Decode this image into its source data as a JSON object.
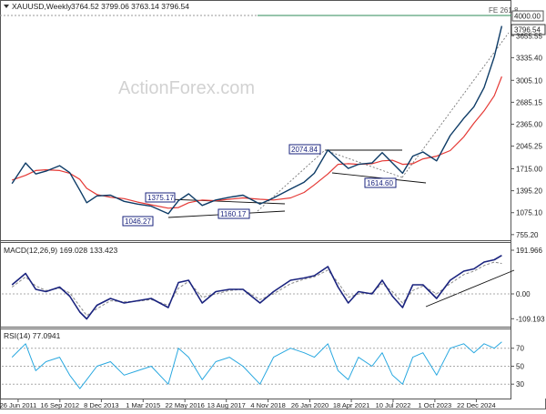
{
  "chart_data": [
    {
      "type": "line",
      "panel": "price",
      "symbol": "XAUUSD,Weekly",
      "ohlc_header": "3764.52 3799.06 3763.14 3796.54",
      "watermark": "ActionForex.com",
      "fib_label": "FE 261.8",
      "y_ticks": [
        "3655.55",
        "3335.40",
        "3005.10",
        "2685.15",
        "2365.00",
        "2045.25",
        "1715.00",
        "1395.20",
        "1075.10",
        "755.20"
      ],
      "y_tick_values": [
        3655.55,
        3335.4,
        3005.1,
        2685.15,
        2365.0,
        2045.25,
        1715.0,
        1395.2,
        1075.1,
        755.2
      ],
      "ylim": [
        700,
        4150
      ],
      "last_price": "3796.54",
      "level_4000": "4000.00",
      "x_ticks": [
        "26 Jun 2011",
        "16 Sep 2012",
        "8 Dec 2013",
        "1 Mar 2015",
        "22 May 2016",
        "13 Aug 2017",
        "4 Nov 2018",
        "26 Jan 2020",
        "18 Apr 2021",
        "10 Jul 2022",
        "1 Oct 2023",
        "22 Dec 2024"
      ],
      "annotations": [
        "1375.17",
        "1046.27",
        "1160.17",
        "2074.84",
        "1614.60"
      ],
      "x": [
        2011.3,
        2011.7,
        2012.0,
        2012.3,
        2012.7,
        2013.0,
        2013.3,
        2013.5,
        2013.8,
        2014.2,
        2014.6,
        2015.0,
        2015.4,
        2015.9,
        2016.2,
        2016.5,
        2016.9,
        2017.3,
        2017.7,
        2018.1,
        2018.6,
        2019.0,
        2019.5,
        2019.9,
        2020.2,
        2020.6,
        2020.9,
        2021.2,
        2021.5,
        2021.9,
        2022.2,
        2022.5,
        2022.8,
        2023.1,
        2023.4,
        2023.8,
        2024.2,
        2024.6,
        2024.9,
        2025.2,
        2025.5,
        2025.72
      ],
      "series": [
        {
          "values": [
            1500,
            1800,
            1640,
            1680,
            1760,
            1660,
            1400,
            1220,
            1320,
            1330,
            1240,
            1200,
            1170,
            1060,
            1250,
            1350,
            1180,
            1260,
            1300,
            1330,
            1200,
            1290,
            1420,
            1520,
            1650,
            1990,
            1850,
            1720,
            1780,
            1800,
            1950,
            1800,
            1650,
            1900,
            1960,
            1830,
            2200,
            2450,
            2620,
            2900,
            3350,
            3796.54
          ]
        },
        {
          "values": [
            1550,
            1620,
            1690,
            1700,
            1690,
            1650,
            1560,
            1430,
            1340,
            1300,
            1280,
            1230,
            1190,
            1140,
            1150,
            1220,
            1260,
            1250,
            1270,
            1290,
            1270,
            1260,
            1290,
            1370,
            1480,
            1640,
            1780,
            1790,
            1780,
            1790,
            1830,
            1840,
            1780,
            1790,
            1860,
            1900,
            1980,
            2180,
            2380,
            2560,
            2780,
            3060
          ]
        }
      ]
    },
    {
      "type": "line",
      "panel": "macd",
      "label": "MACD(12,26,9) 169.028 133.423",
      "y_ticks": [
        "191.966",
        "0.00",
        "-109.193"
      ],
      "y_tick_values": [
        191.966,
        0,
        -109.193
      ],
      "ylim": [
        -140,
        220
      ],
      "x": [
        2011.3,
        2011.7,
        2012.0,
        2012.3,
        2012.7,
        2013.0,
        2013.3,
        2013.5,
        2013.8,
        2014.2,
        2014.6,
        2015.0,
        2015.4,
        2015.9,
        2016.2,
        2016.5,
        2016.9,
        2017.3,
        2017.7,
        2018.1,
        2018.6,
        2019.0,
        2019.5,
        2019.9,
        2020.2,
        2020.6,
        2020.9,
        2021.2,
        2021.5,
        2021.9,
        2022.2,
        2022.5,
        2022.8,
        2023.1,
        2023.4,
        2023.8,
        2024.2,
        2024.6,
        2024.9,
        2025.2,
        2025.5,
        2025.72
      ],
      "series": [
        {
          "values": [
            40,
            90,
            20,
            10,
            30,
            -10,
            -80,
            -110,
            -50,
            -20,
            -40,
            -30,
            -20,
            -60,
            50,
            60,
            -40,
            10,
            20,
            20,
            -40,
            10,
            60,
            70,
            80,
            120,
            30,
            -40,
            10,
            0,
            60,
            -10,
            -60,
            40,
            40,
            -20,
            60,
            100,
            110,
            140,
            150,
            169.028
          ]
        },
        {
          "values": [
            30,
            75,
            35,
            15,
            25,
            5,
            -55,
            -95,
            -65,
            -30,
            -35,
            -32,
            -25,
            -50,
            25,
            55,
            -15,
            0,
            15,
            20,
            -25,
            0,
            45,
            65,
            75,
            105,
            50,
            -15,
            0,
            5,
            45,
            10,
            -40,
            15,
            35,
            0,
            45,
            85,
            100,
            125,
            140,
            133.423
          ]
        }
      ]
    },
    {
      "type": "line",
      "panel": "rsi",
      "label": "RSI(14) 77.0941",
      "y_ticks": [
        "70",
        "50",
        "30"
      ],
      "y_tick_values": [
        70,
        50,
        30
      ],
      "ylim": [
        15,
        90
      ],
      "x": [
        2011.3,
        2011.7,
        2012.0,
        2012.3,
        2012.7,
        2013.0,
        2013.3,
        2013.5,
        2013.8,
        2014.2,
        2014.6,
        2015.0,
        2015.4,
        2015.9,
        2016.2,
        2016.5,
        2016.9,
        2017.3,
        2017.7,
        2018.1,
        2018.6,
        2019.0,
        2019.5,
        2019.9,
        2020.2,
        2020.6,
        2020.9,
        2021.2,
        2021.5,
        2021.9,
        2022.2,
        2022.5,
        2022.8,
        2023.1,
        2023.4,
        2023.8,
        2024.2,
        2024.6,
        2024.9,
        2025.2,
        2025.5,
        2025.72
      ],
      "series": [
        {
          "values": [
            60,
            75,
            45,
            55,
            60,
            40,
            25,
            35,
            50,
            55,
            40,
            45,
            50,
            30,
            70,
            60,
            35,
            55,
            60,
            50,
            30,
            60,
            70,
            65,
            60,
            75,
            45,
            35,
            60,
            50,
            65,
            40,
            30,
            60,
            65,
            40,
            70,
            75,
            65,
            75,
            70,
            77.0941
          ]
        }
      ]
    }
  ]
}
